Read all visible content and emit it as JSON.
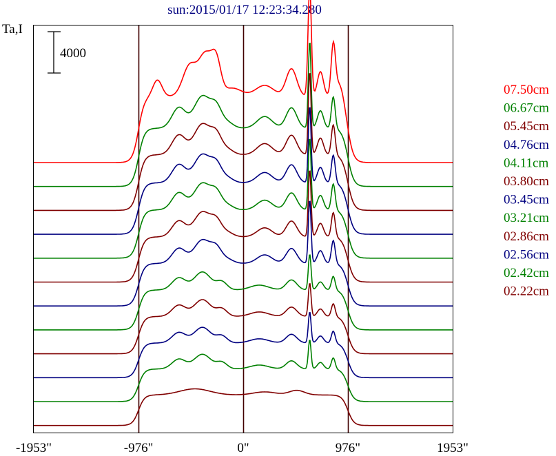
{
  "chart_data": {
    "type": "line",
    "title": "sun:2015/01/17 12:23:34.280",
    "ylabel": "Ta,I",
    "scale_bar_label": "4000",
    "scale_bar_value": 4000,
    "xlabels": [
      "-1953\"",
      "-976\"",
      "0\"",
      "976\"",
      "1953\""
    ],
    "xticks": [
      -1953,
      -976,
      0,
      976,
      1953
    ],
    "xlim": [
      -1953,
      1953
    ],
    "vertical_lines": [
      -976,
      0,
      976
    ],
    "colors": {
      "red": "#ff0000",
      "green": "#008000",
      "maroon": "#800000",
      "blue": "#000080"
    },
    "series": [
      {
        "name": "07.50cm",
        "color": "#ff0000",
        "base": 0,
        "profile": "a",
        "amp": 1.0
      },
      {
        "name": "06.67cm",
        "color": "#008000",
        "base": 0,
        "profile": "b",
        "amp": 0.85
      },
      {
        "name": "05.45cm",
        "color": "#800000",
        "base": 0,
        "profile": "b",
        "amp": 0.8
      },
      {
        "name": "04.76cm",
        "color": "#000080",
        "base": 0,
        "profile": "b",
        "amp": 0.72
      },
      {
        "name": "04.11cm",
        "color": "#008000",
        "base": 0,
        "profile": "b",
        "amp": 0.66
      },
      {
        "name": "03.80cm",
        "color": "#800000",
        "base": 0,
        "profile": "b",
        "amp": 0.6
      },
      {
        "name": "03.45cm",
        "color": "#000080",
        "base": 0,
        "profile": "b",
        "amp": 0.55
      },
      {
        "name": "03.21cm",
        "color": "#008000",
        "base": 0,
        "profile": "c",
        "amp": 0.5
      },
      {
        "name": "02.86cm",
        "color": "#800000",
        "base": 0,
        "profile": "c",
        "amp": 0.45
      },
      {
        "name": "02.56cm",
        "color": "#000080",
        "base": 0,
        "profile": "c",
        "amp": 0.4
      },
      {
        "name": "02.42cm",
        "color": "#008000",
        "base": 0,
        "profile": "c",
        "amp": 0.36
      },
      {
        "name": "02.22cm",
        "color": "#800000",
        "base": 0,
        "profile": "d",
        "amp": 0.32
      }
    ],
    "grid": false,
    "legend_position": "right"
  }
}
